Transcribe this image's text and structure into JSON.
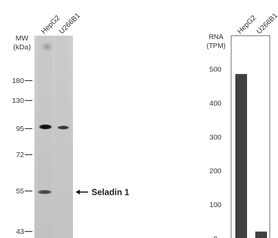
{
  "western_blot": {
    "mw_header": [
      "MW",
      "(kDa)"
    ],
    "lanes": [
      "HepG2",
      "U266B1"
    ],
    "markers": [
      "180",
      "130",
      "95",
      "72",
      "55",
      "43"
    ],
    "band_label": "Seladin 1"
  },
  "chart_data": {
    "type": "bar",
    "ylabel_lines": [
      "RNA",
      "(TPM)"
    ],
    "categories": [
      "HepG2",
      "U266B1"
    ],
    "values": [
      485,
      20
    ],
    "yticks": [
      "500",
      "400",
      "300",
      "200",
      "100",
      "0"
    ],
    "ylim": [
      0,
      530
    ],
    "grid": false,
    "bar_color": "#404040"
  }
}
